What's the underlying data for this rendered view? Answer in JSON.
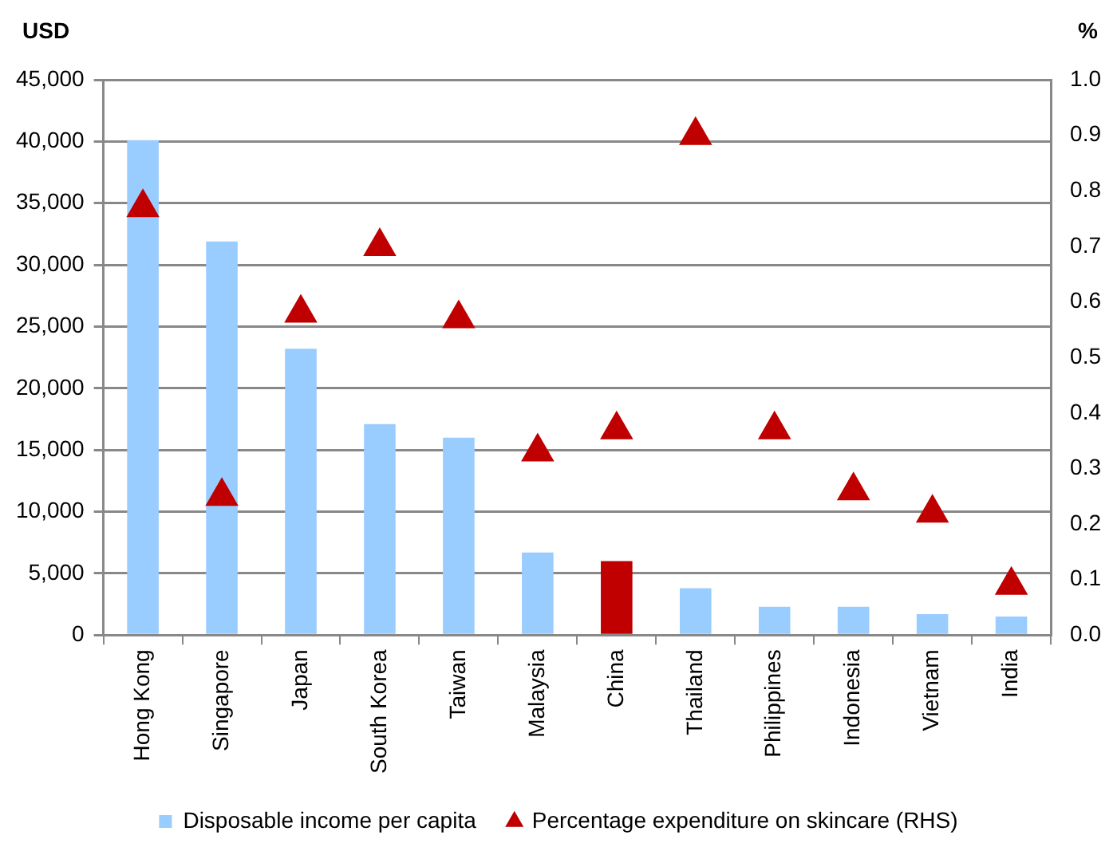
{
  "chart_data": {
    "type": "bar",
    "ylabel": "USD",
    "y2label": "%",
    "categories": [
      "Hong Kong",
      "Singapore",
      "Japan",
      "South Korea",
      "Taiwan",
      "Malaysia",
      "China",
      "Thailand",
      "Philippines",
      "Indonesia",
      "Vietnam",
      "India"
    ],
    "series": [
      {
        "name": "Disposable income per capita",
        "color": "#99ccff",
        "colors": [
          "#99ccff",
          "#99ccff",
          "#99ccff",
          "#99ccff",
          "#99ccff",
          "#99ccff",
          "#c00000",
          "#99ccff",
          "#99ccff",
          "#99ccff",
          "#99ccff",
          "#99ccff"
        ],
        "values": [
          40100,
          31900,
          23200,
          17100,
          16000,
          6700,
          6000,
          3800,
          2300,
          2300,
          1700,
          1500
        ]
      },
      {
        "name": "Percentage expenditure on skincare (RHS)",
        "type": "scatter",
        "axis": "y2",
        "marker": "triangle",
        "color": "#c00000",
        "values": [
          0.77,
          0.25,
          0.58,
          0.7,
          0.57,
          0.33,
          0.37,
          0.9,
          0.37,
          0.26,
          0.22,
          0.09
        ]
      }
    ],
    "ylim": [
      0,
      45000
    ],
    "yticks": [
      {
        "value": 0,
        "label": "0"
      },
      {
        "value": 5000,
        "label": "5,000"
      },
      {
        "value": 10000,
        "label": "10,000"
      },
      {
        "value": 15000,
        "label": "15,000"
      },
      {
        "value": 20000,
        "label": "20,000"
      },
      {
        "value": 25000,
        "label": "25,000"
      },
      {
        "value": 30000,
        "label": "30,000"
      },
      {
        "value": 35000,
        "label": "35,000"
      },
      {
        "value": 40000,
        "label": "40,000"
      },
      {
        "value": 45000,
        "label": "45,000"
      }
    ],
    "y2lim": [
      0,
      1
    ],
    "y2ticks": [
      {
        "value": 0,
        "label": "0.0"
      },
      {
        "value": 0.1,
        "label": "0.1"
      },
      {
        "value": 0.2,
        "label": "0.2"
      },
      {
        "value": 0.3,
        "label": "0.3"
      },
      {
        "value": 0.4,
        "label": "0.4"
      },
      {
        "value": 0.5,
        "label": "0.5"
      },
      {
        "value": 0.6,
        "label": "0.6"
      },
      {
        "value": 0.7,
        "label": "0.7"
      },
      {
        "value": 0.8,
        "label": "0.8"
      },
      {
        "value": 0.9,
        "label": "0.9"
      },
      {
        "value": 1,
        "label": "1.0"
      }
    ],
    "grid": "y",
    "legend": "bottom"
  }
}
